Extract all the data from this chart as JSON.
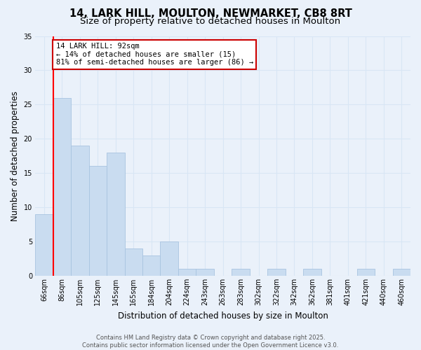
{
  "title1": "14, LARK HILL, MOULTON, NEWMARKET, CB8 8RT",
  "title2": "Size of property relative to detached houses in Moulton",
  "xlabel": "Distribution of detached houses by size in Moulton",
  "ylabel": "Number of detached properties",
  "bar_values": [
    9,
    26,
    19,
    16,
    18,
    4,
    3,
    5,
    1,
    1,
    0,
    1,
    0,
    1,
    0,
    1,
    0,
    0,
    1,
    0,
    1
  ],
  "bar_labels": [
    "66sqm",
    "86sqm",
    "105sqm",
    "125sqm",
    "145sqm",
    "165sqm",
    "184sqm",
    "204sqm",
    "224sqm",
    "243sqm",
    "263sqm",
    "283sqm",
    "302sqm",
    "322sqm",
    "342sqm",
    "362sqm",
    "381sqm",
    "401sqm",
    "421sqm",
    "440sqm",
    "460sqm"
  ],
  "bar_color": "#c9dcf0",
  "bar_edge_color": "#a8c4e0",
  "grid_color": "#d8e6f5",
  "background_color": "#eaf1fa",
  "red_line_x": 0.5,
  "annotation_text": "14 LARK HILL: 92sqm\n← 14% of detached houses are smaller (15)\n81% of semi-detached houses are larger (86) →",
  "annotation_box_facecolor": "#ffffff",
  "annotation_box_edgecolor": "#cc0000",
  "ylim": [
    0,
    35
  ],
  "yticks": [
    0,
    5,
    10,
    15,
    20,
    25,
    30,
    35
  ],
  "footer_text": "Contains HM Land Registry data © Crown copyright and database right 2025.\nContains public sector information licensed under the Open Government Licence v3.0.",
  "title_fontsize": 10.5,
  "subtitle_fontsize": 9.5,
  "tick_fontsize": 7,
  "ylabel_fontsize": 8.5,
  "xlabel_fontsize": 8.5,
  "annot_fontsize": 7.5
}
